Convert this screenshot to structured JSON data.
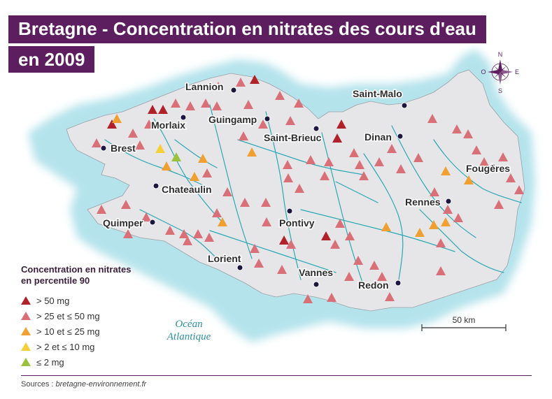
{
  "title": {
    "line1": "Bretagne - Concentration en nitrates des cours d'eau",
    "line2": "en 2009"
  },
  "colors": {
    "brand": "#5c1e5e",
    "land": "#e6e6e8",
    "sea_near": "#b5e3ec",
    "river": "#2aa7b5",
    "cat_gt50": "#b0212a",
    "cat_25_50": "#d97078",
    "cat_10_25": "#f0a030",
    "cat_2_10": "#f5cf3a",
    "cat_le2": "#9bc23c"
  },
  "legend": {
    "title_line1": "Concentration en nitrates",
    "title_line2": "en percentile 90",
    "items": [
      {
        "label": "> 50 mg",
        "category": "gt50"
      },
      {
        "label": "> 25 et ≤ 50 mg",
        "category": "25_50"
      },
      {
        "label": "> 10 et ≤ 25 mg",
        "category": "10_25"
      },
      {
        "label": "> 2 et ≤ 10 mg",
        "category": "2_10"
      },
      {
        "label": "≤ 2 mg",
        "category": "le2"
      }
    ]
  },
  "cities": [
    "Lannion",
    "Saint-Malo",
    "Morlaix",
    "Guingamp",
    "Saint-Brieuc",
    "Dinan",
    "Brest",
    "Fougères",
    "Chateaulin",
    "Rennes",
    "Quimper",
    "Pontivy",
    "Lorient",
    "Vannes",
    "Redon"
  ],
  "ocean_label": {
    "line1": "Océan",
    "line2": "Atlantique"
  },
  "scale_label": "50 km",
  "compass": {
    "n": "N",
    "s": "S",
    "e": "E",
    "o": "O"
  },
  "source": {
    "prefix": "Sources : ",
    "site": "bretagne-environnement.fr"
  }
}
